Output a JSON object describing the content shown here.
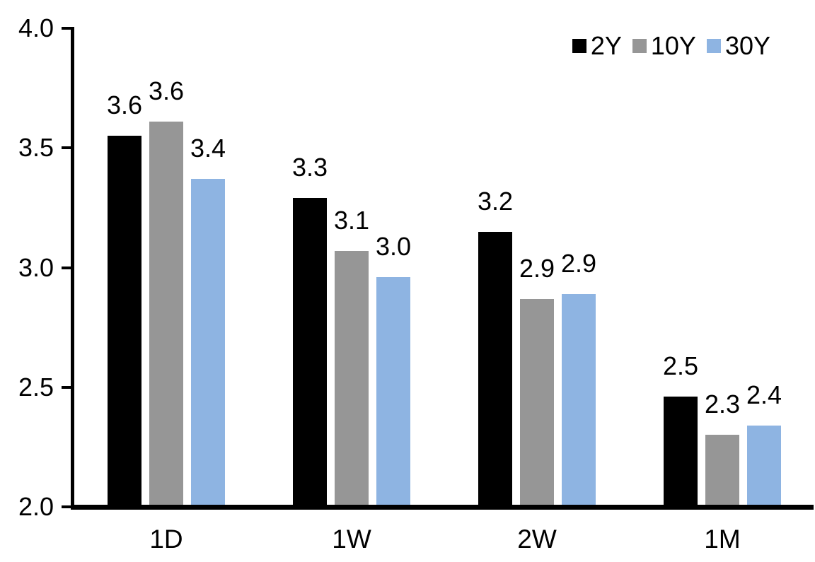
{
  "chart_data": {
    "type": "bar",
    "title": "",
    "xlabel": "",
    "ylabel": "",
    "grid": false,
    "background_color": "#ffffff",
    "text_color": "#000000",
    "categories": [
      "1D",
      "1W",
      "2W",
      "1M"
    ],
    "series": [
      {
        "name": "2Y",
        "color": "#000000",
        "values": [
          3.6,
          3.3,
          3.2,
          2.5
        ],
        "values_precise": [
          3.55,
          3.29,
          3.15,
          2.46
        ],
        "labels": [
          "3.6",
          "3.3",
          "3.2",
          "2.5"
        ]
      },
      {
        "name": "10Y",
        "color": "#969696",
        "values": [
          3.6,
          3.1,
          2.9,
          2.3
        ],
        "values_precise": [
          3.61,
          3.07,
          2.87,
          2.3
        ],
        "labels": [
          "3.6",
          "3.1",
          "2.9",
          "2.3"
        ]
      },
      {
        "name": "30Y",
        "color": "#8EB4E2",
        "values": [
          3.4,
          3.0,
          2.9,
          2.4
        ],
        "values_precise": [
          3.37,
          2.96,
          2.89,
          2.34
        ],
        "labels": [
          "3.4",
          "3.0",
          "2.9",
          "2.4"
        ]
      }
    ],
    "y_axis": {
      "min": 2.0,
      "max": 4.0,
      "tick_values": [
        4.0,
        3.5,
        3.0,
        2.5,
        2.0
      ],
      "tick_labels": [
        "4.0",
        "3.5",
        "3.0",
        "2.5",
        "2.0"
      ]
    },
    "legend": {
      "position": "top-right",
      "entries": [
        "2Y",
        "10Y",
        "30Y"
      ]
    }
  }
}
